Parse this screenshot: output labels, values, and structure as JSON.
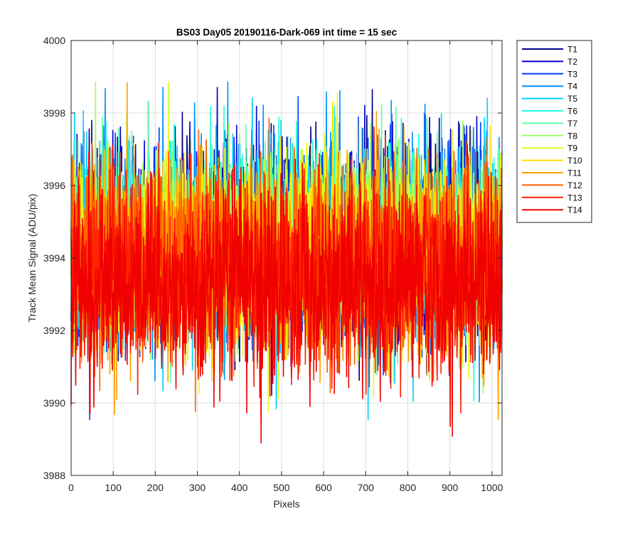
{
  "chart_data": {
    "type": "line",
    "title": "BS03 Day05 20190116-Dark-069 int time = 15 sec",
    "xlabel": "Pixels",
    "ylabel": "Track Mean Signal (ADU/pix)",
    "xlim": [
      0,
      1024
    ],
    "ylim": [
      3988,
      4000
    ],
    "xticks": [
      0,
      100,
      200,
      300,
      400,
      500,
      600,
      700,
      800,
      900,
      1000
    ],
    "yticks": [
      3988,
      3990,
      3992,
      3994,
      3996,
      3998,
      4000
    ],
    "grid": true,
    "legend_position": "outside-top-right",
    "n_points_per_series": 1024,
    "series": [
      {
        "name": "T1",
        "color": "#00008F",
        "mean": 3994.6,
        "noise_sd": 1.35
      },
      {
        "name": "T2",
        "color": "#0000D0",
        "mean": 3994.5,
        "noise_sd": 1.35
      },
      {
        "name": "T3",
        "color": "#0040FF",
        "mean": 3994.4,
        "noise_sd": 1.3
      },
      {
        "name": "T4",
        "color": "#0090FF",
        "mean": 3994.4,
        "noise_sd": 1.3
      },
      {
        "name": "T5",
        "color": "#00D0FF",
        "mean": 3994.5,
        "noise_sd": 1.3
      },
      {
        "name": "T6",
        "color": "#20FFDF",
        "mean": 3994.4,
        "noise_sd": 1.3
      },
      {
        "name": "T7",
        "color": "#60FFA0",
        "mean": 3994.3,
        "noise_sd": 1.3
      },
      {
        "name": "T8",
        "color": "#A0FF60",
        "mean": 3994.3,
        "noise_sd": 1.3
      },
      {
        "name": "T9",
        "color": "#DFFF20",
        "mean": 3994.2,
        "noise_sd": 1.3
      },
      {
        "name": "T10",
        "color": "#FFE000",
        "mean": 3994.1,
        "noise_sd": 1.3
      },
      {
        "name": "T11",
        "color": "#FFA000",
        "mean": 3994.0,
        "noise_sd": 1.3
      },
      {
        "name": "T12",
        "color": "#FF6000",
        "mean": 3993.9,
        "noise_sd": 1.3
      },
      {
        "name": "T13",
        "color": "#FF2000",
        "mean": 3993.6,
        "noise_sd": 1.3
      },
      {
        "name": "T14",
        "color": "#F00000",
        "mean": 3993.3,
        "noise_sd": 1.3
      }
    ]
  }
}
